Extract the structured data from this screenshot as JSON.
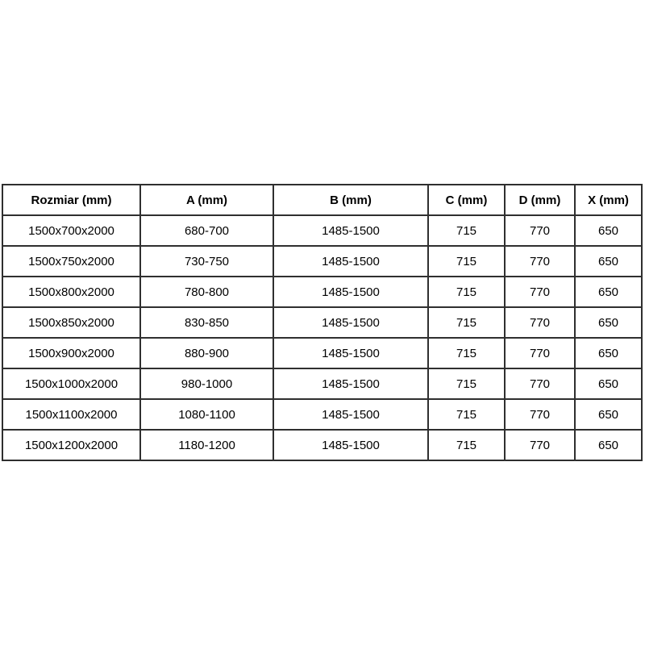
{
  "style": {
    "background": "#ffffff",
    "border_color": "#2f2f2f",
    "text_color": "#000000"
  },
  "chart_data": {
    "type": "table",
    "title": "",
    "columns": [
      "Rozmiar (mm)",
      "A (mm)",
      "B (mm)",
      "C (mm)",
      "D (mm)",
      "X (mm)"
    ],
    "rows": [
      [
        "1500x700x2000",
        "680-700",
        "1485-1500",
        "715",
        "770",
        "650"
      ],
      [
        "1500x750x2000",
        "730-750",
        "1485-1500",
        "715",
        "770",
        "650"
      ],
      [
        "1500x800x2000",
        "780-800",
        "1485-1500",
        "715",
        "770",
        "650"
      ],
      [
        "1500x850x2000",
        "830-850",
        "1485-1500",
        "715",
        "770",
        "650"
      ],
      [
        "1500x900x2000",
        "880-900",
        "1485-1500",
        "715",
        "770",
        "650"
      ],
      [
        "1500x1000x2000",
        "980-1000",
        "1485-1500",
        "715",
        "770",
        "650"
      ],
      [
        "1500x1100x2000",
        "1080-1100",
        "1485-1500",
        "715",
        "770",
        "650"
      ],
      [
        "1500x1200x2000",
        "1180-1200",
        "1485-1500",
        "715",
        "770",
        "650"
      ]
    ]
  }
}
